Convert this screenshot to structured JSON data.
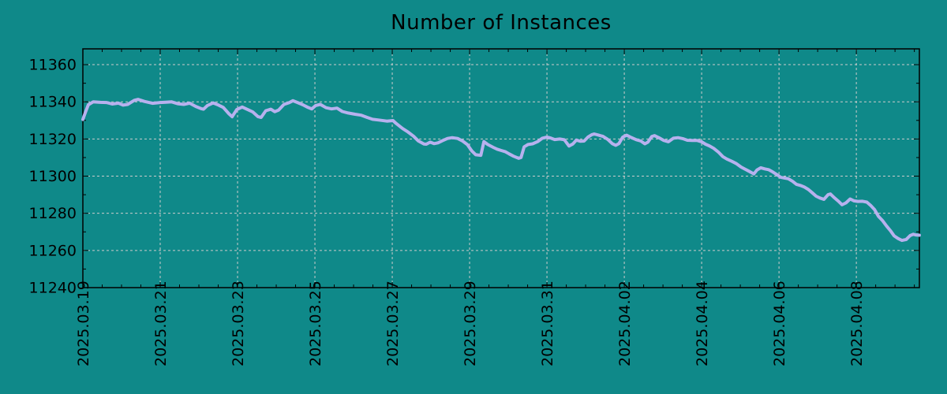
{
  "chart_data": {
    "type": "line",
    "title": "Number of Instances",
    "xlabel": "",
    "ylabel": "",
    "grid": true,
    "legend": "none",
    "x_tick_labels": [
      "2025.03.19",
      "2025.03.21",
      "2025.03.23",
      "2025.03.25",
      "2025.03.27",
      "2025.03.29",
      "2025.03.31",
      "2025.04.02",
      "2025.04.04",
      "2025.04.06",
      "2025.04.08"
    ],
    "x_tick_days": [
      0,
      2,
      4,
      6,
      8,
      10,
      12,
      14,
      16,
      18,
      20
    ],
    "x_minor_step_days": 0.5,
    "x_max_days": 21.63,
    "y_ticks": [
      11240,
      11260,
      11280,
      11300,
      11320,
      11340,
      11360
    ],
    "y_minor_step": 10,
    "y_min": 11240,
    "y_max": 11368.5,
    "colors": {
      "background": "#0f8989",
      "line": "#b7b1ee",
      "grid": "#cccccc",
      "axis": "#000000",
      "text": "#000000"
    },
    "series": [
      {
        "name": "instances",
        "points": [
          [
            0.0,
            11330.5
          ],
          [
            0.06,
            11334.0
          ],
          [
            0.14,
            11338.4
          ],
          [
            0.27,
            11340.0
          ],
          [
            0.45,
            11339.7
          ],
          [
            0.61,
            11339.6
          ],
          [
            0.76,
            11338.8
          ],
          [
            0.92,
            11339.3
          ],
          [
            1.04,
            11338.2
          ],
          [
            1.16,
            11338.6
          ],
          [
            1.33,
            11340.8
          ],
          [
            1.43,
            11341.3
          ],
          [
            1.59,
            11340.2
          ],
          [
            1.8,
            11339.2
          ],
          [
            2.0,
            11339.6
          ],
          [
            2.14,
            11339.8
          ],
          [
            2.29,
            11340.0
          ],
          [
            2.45,
            11339.0
          ],
          [
            2.61,
            11338.6
          ],
          [
            2.76,
            11339.3
          ],
          [
            2.92,
            11337.5
          ],
          [
            3.06,
            11336.3
          ],
          [
            3.12,
            11336.0
          ],
          [
            3.22,
            11338.0
          ],
          [
            3.37,
            11339.4
          ],
          [
            3.51,
            11338.2
          ],
          [
            3.63,
            11337.0
          ],
          [
            3.78,
            11333.5
          ],
          [
            3.86,
            11332.0
          ],
          [
            3.98,
            11335.8
          ],
          [
            4.12,
            11337.2
          ],
          [
            4.24,
            11336.0
          ],
          [
            4.39,
            11334.6
          ],
          [
            4.53,
            11332.0
          ],
          [
            4.61,
            11331.6
          ],
          [
            4.73,
            11335.2
          ],
          [
            4.86,
            11336.0
          ],
          [
            4.96,
            11334.7
          ],
          [
            5.06,
            11335.5
          ],
          [
            5.2,
            11338.6
          ],
          [
            5.33,
            11339.5
          ],
          [
            5.43,
            11340.6
          ],
          [
            5.55,
            11339.6
          ],
          [
            5.69,
            11338.4
          ],
          [
            5.82,
            11337.0
          ],
          [
            5.92,
            11336.2
          ],
          [
            6.02,
            11338.0
          ],
          [
            6.14,
            11338.6
          ],
          [
            6.29,
            11336.8
          ],
          [
            6.43,
            11336.2
          ],
          [
            6.57,
            11336.6
          ],
          [
            6.71,
            11334.8
          ],
          [
            6.86,
            11334.0
          ],
          [
            7.04,
            11333.3
          ],
          [
            7.2,
            11332.8
          ],
          [
            7.35,
            11331.6
          ],
          [
            7.49,
            11330.6
          ],
          [
            7.65,
            11330.2
          ],
          [
            7.86,
            11329.6
          ],
          [
            8.02,
            11329.9
          ],
          [
            8.1,
            11328.4
          ],
          [
            8.27,
            11325.6
          ],
          [
            8.41,
            11323.7
          ],
          [
            8.55,
            11321.5
          ],
          [
            8.67,
            11319.0
          ],
          [
            8.82,
            11317.3
          ],
          [
            8.88,
            11317.2
          ],
          [
            8.98,
            11318.3
          ],
          [
            9.08,
            11317.5
          ],
          [
            9.18,
            11317.9
          ],
          [
            9.29,
            11319.0
          ],
          [
            9.43,
            11320.3
          ],
          [
            9.55,
            11320.7
          ],
          [
            9.69,
            11320.3
          ],
          [
            9.82,
            11318.9
          ],
          [
            9.94,
            11317.0
          ],
          [
            10.06,
            11313.5
          ],
          [
            10.16,
            11311.5
          ],
          [
            10.29,
            11311.2
          ],
          [
            10.37,
            11318.6
          ],
          [
            10.47,
            11317.0
          ],
          [
            10.61,
            11315.5
          ],
          [
            10.71,
            11314.5
          ],
          [
            10.82,
            11313.8
          ],
          [
            10.92,
            11313.2
          ],
          [
            11.02,
            11312.0
          ],
          [
            11.14,
            11310.7
          ],
          [
            11.27,
            11309.6
          ],
          [
            11.33,
            11310.0
          ],
          [
            11.41,
            11315.8
          ],
          [
            11.51,
            11317.0
          ],
          [
            11.63,
            11317.4
          ],
          [
            11.76,
            11318.6
          ],
          [
            11.88,
            11320.4
          ],
          [
            12.0,
            11321.0
          ],
          [
            12.1,
            11320.5
          ],
          [
            12.2,
            11319.7
          ],
          [
            12.33,
            11320.0
          ],
          [
            12.45,
            11319.6
          ],
          [
            12.57,
            11316.2
          ],
          [
            12.67,
            11317.3
          ],
          [
            12.76,
            11319.4
          ],
          [
            12.86,
            11318.8
          ],
          [
            12.96,
            11318.9
          ],
          [
            13.06,
            11321.0
          ],
          [
            13.16,
            11322.3
          ],
          [
            13.22,
            11322.7
          ],
          [
            13.33,
            11322.1
          ],
          [
            13.45,
            11321.4
          ],
          [
            13.57,
            11319.8
          ],
          [
            13.69,
            11317.5
          ],
          [
            13.78,
            11316.6
          ],
          [
            13.86,
            11317.5
          ],
          [
            13.96,
            11321.0
          ],
          [
            14.06,
            11322.0
          ],
          [
            14.18,
            11320.8
          ],
          [
            14.31,
            11319.6
          ],
          [
            14.43,
            11318.9
          ],
          [
            14.53,
            11317.4
          ],
          [
            14.61,
            11318.3
          ],
          [
            14.71,
            11321.3
          ],
          [
            14.78,
            11321.8
          ],
          [
            14.9,
            11320.6
          ],
          [
            15.02,
            11319.2
          ],
          [
            15.14,
            11318.5
          ],
          [
            15.27,
            11320.4
          ],
          [
            15.39,
            11320.7
          ],
          [
            15.51,
            11320.2
          ],
          [
            15.63,
            11319.3
          ],
          [
            15.76,
            11319.2
          ],
          [
            15.88,
            11319.2
          ],
          [
            16.0,
            11318.5
          ],
          [
            16.1,
            11317.2
          ],
          [
            16.2,
            11316.3
          ],
          [
            16.31,
            11315.0
          ],
          [
            16.43,
            11313.0
          ],
          [
            16.55,
            11310.5
          ],
          [
            16.65,
            11309.2
          ],
          [
            16.78,
            11308.0
          ],
          [
            16.9,
            11306.7
          ],
          [
            17.02,
            11304.9
          ],
          [
            17.12,
            11303.8
          ],
          [
            17.22,
            11302.7
          ],
          [
            17.35,
            11301.2
          ],
          [
            17.43,
            11303.3
          ],
          [
            17.53,
            11304.5
          ],
          [
            17.63,
            11303.9
          ],
          [
            17.73,
            11303.5
          ],
          [
            17.84,
            11302.2
          ],
          [
            17.94,
            11300.9
          ],
          [
            18.04,
            11299.4
          ],
          [
            18.14,
            11299.0
          ],
          [
            18.24,
            11298.6
          ],
          [
            18.35,
            11297.2
          ],
          [
            18.45,
            11295.6
          ],
          [
            18.55,
            11295.0
          ],
          [
            18.65,
            11294.2
          ],
          [
            18.76,
            11292.8
          ],
          [
            18.86,
            11291.0
          ],
          [
            18.96,
            11289.2
          ],
          [
            19.06,
            11288.2
          ],
          [
            19.16,
            11287.5
          ],
          [
            19.27,
            11290.0
          ],
          [
            19.33,
            11290.4
          ],
          [
            19.43,
            11288.4
          ],
          [
            19.53,
            11286.6
          ],
          [
            19.63,
            11284.6
          ],
          [
            19.73,
            11285.6
          ],
          [
            19.84,
            11287.7
          ],
          [
            19.94,
            11286.7
          ],
          [
            20.04,
            11286.4
          ],
          [
            20.16,
            11286.5
          ],
          [
            20.27,
            11286.0
          ],
          [
            20.37,
            11284.2
          ],
          [
            20.47,
            11282.0
          ],
          [
            20.57,
            11278.4
          ],
          [
            20.67,
            11276.2
          ],
          [
            20.78,
            11273.2
          ],
          [
            20.88,
            11270.7
          ],
          [
            20.98,
            11267.8
          ],
          [
            21.08,
            11266.4
          ],
          [
            21.18,
            11265.4
          ],
          [
            21.29,
            11265.9
          ],
          [
            21.39,
            11268.0
          ],
          [
            21.47,
            11268.7
          ],
          [
            21.55,
            11268.3
          ],
          [
            21.63,
            11268.2
          ]
        ]
      }
    ]
  }
}
